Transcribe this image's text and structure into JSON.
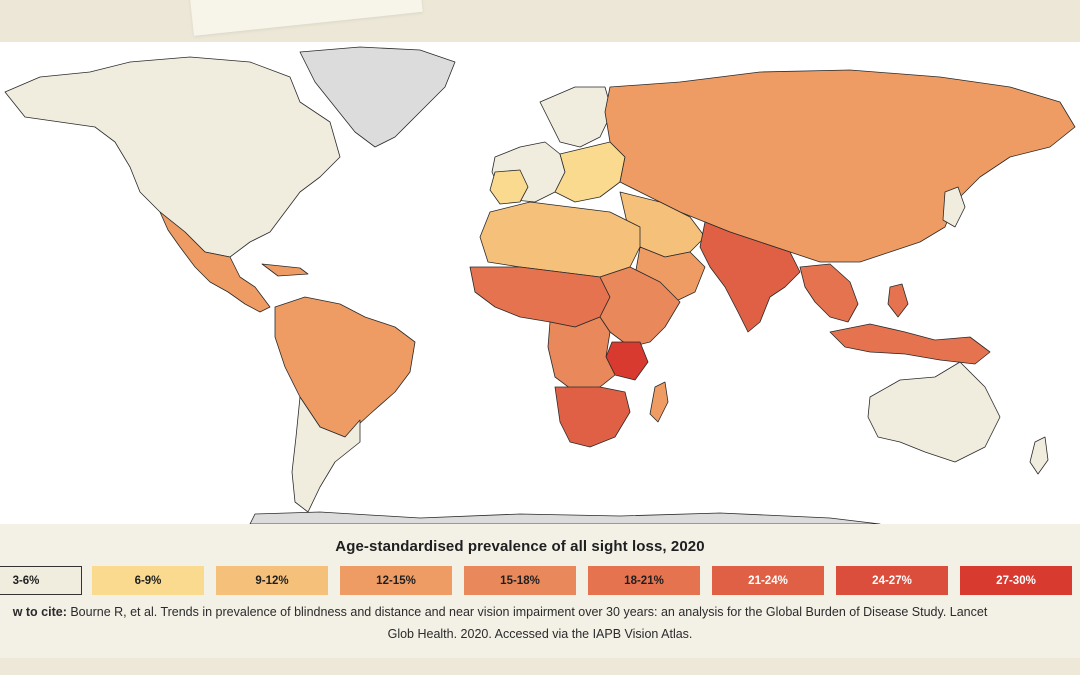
{
  "legend": {
    "title": "Age-standardised prevalence of all sight loss, 2020",
    "bins": [
      {
        "label": "3-6%",
        "color": "#f0ecde"
      },
      {
        "label": "6-9%",
        "color": "#f9da8f"
      },
      {
        "label": "9-12%",
        "color": "#f5c07a"
      },
      {
        "label": "12-15%",
        "color": "#ee9c64"
      },
      {
        "label": "15-18%",
        "color": "#e9885a"
      },
      {
        "label": "18-21%",
        "color": "#e5734f"
      },
      {
        "label": "21-24%",
        "color": "#e06046"
      },
      {
        "label": "24-27%",
        "color": "#dc4e3c"
      },
      {
        "label": "27-30%",
        "color": "#d83a30"
      }
    ]
  },
  "citation": {
    "label": "w to cite:",
    "text": "Bourne R, et al. Trends in prevalence of blindness and distance and near vision impairment over 30 years: an analysis for the Global Burden of Disease Study. Lancet",
    "text2": "Glob Health. 2020. Accessed via the IAPB Vision Atlas."
  },
  "map_colors": {
    "no_data": "#dcdcdc",
    "ocean": "#ffffff"
  }
}
